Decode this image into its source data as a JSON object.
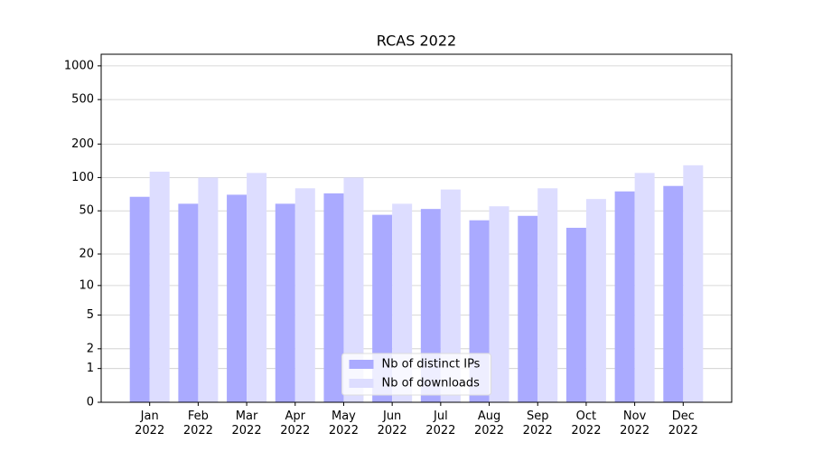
{
  "chart_data": {
    "type": "bar",
    "title": "RCAS 2022",
    "categories": [
      "Jan\n2022",
      "Feb\n2022",
      "Mar\n2022",
      "Apr\n2022",
      "May\n2022",
      "Jun\n2022",
      "Jul\n2022",
      "Aug\n2022",
      "Sep\n2022",
      "Oct\n2022",
      "Nov\n2022",
      "Dec\n2022"
    ],
    "series": [
      {
        "name": "Nb of distinct IPs",
        "color": "#aaaaff",
        "values": [
          67,
          58,
          70,
          58,
          72,
          46,
          52,
          41,
          45,
          35,
          75,
          84
        ]
      },
      {
        "name": "Nb of downloads",
        "color": "#ddddff",
        "values": [
          113,
          100,
          110,
          80,
          100,
          58,
          78,
          55,
          80,
          64,
          110,
          129
        ]
      }
    ],
    "yscale": "log1p",
    "ylim": [
      0,
      1270
    ],
    "yticks": [
      0,
      1,
      2,
      5,
      10,
      20,
      50,
      100,
      200,
      500,
      1000
    ],
    "grid": true,
    "legend": "lower center"
  }
}
